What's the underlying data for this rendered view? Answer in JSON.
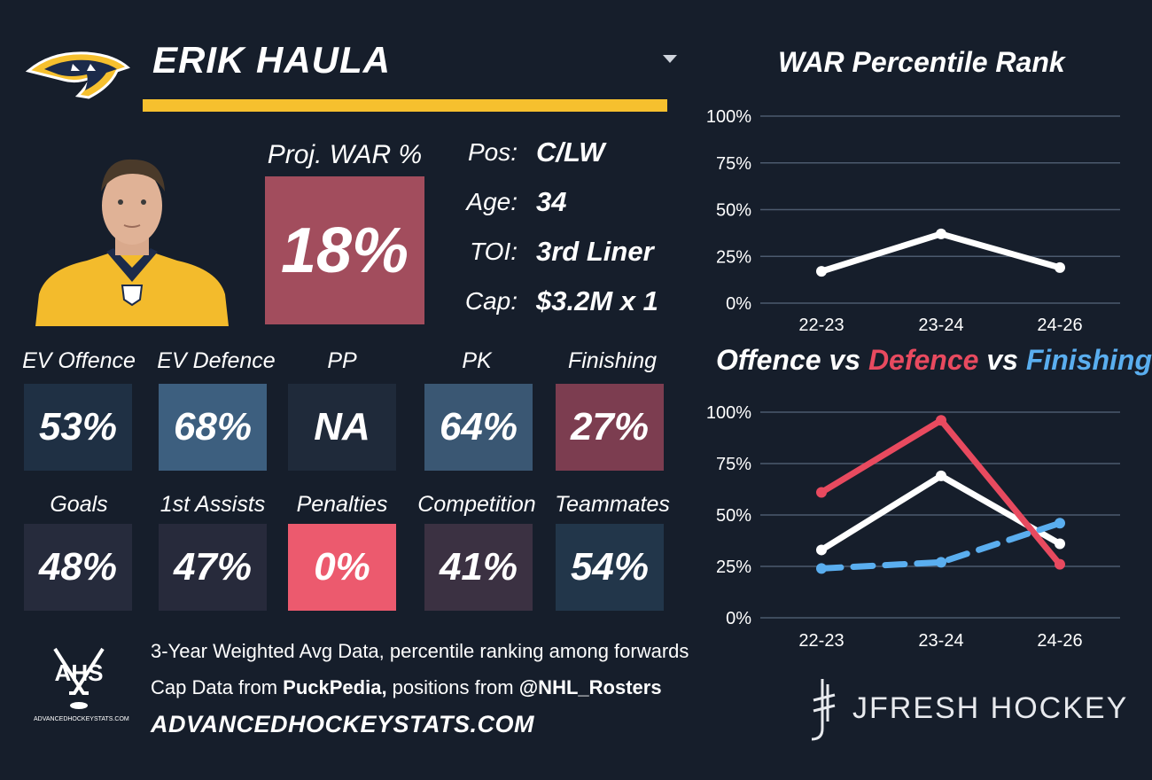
{
  "player": {
    "name": "ERIK HAULA"
  },
  "war": {
    "label": "Proj. WAR %",
    "value": "18%"
  },
  "info": [
    {
      "label": "Pos:",
      "value": "C/LW"
    },
    {
      "label": "Age:",
      "value": "34"
    },
    {
      "label": "TOI:",
      "value": "3rd Liner"
    },
    {
      "label": "Cap:",
      "value": "$3.2M x 1"
    }
  ],
  "tiles_row1": [
    {
      "label": "EV Offence",
      "value": "53%",
      "color": "#1f3044"
    },
    {
      "label": "EV Defence",
      "value": "68%",
      "color": "#3d5f7f"
    },
    {
      "label": "PP",
      "value": "NA",
      "color": "#1f2a3a"
    },
    {
      "label": "PK",
      "value": "64%",
      "color": "#3a5773"
    },
    {
      "label": "Finishing",
      "value": "27%",
      "color": "#7c3d50"
    }
  ],
  "tiles_row2": [
    {
      "label": "Goals",
      "value": "48%",
      "color": "#262b3c"
    },
    {
      "label": "1st Assists",
      "value": "47%",
      "color": "#272a3b"
    },
    {
      "label": "Penalties",
      "value": "0%",
      "color": "#ec5a6e"
    },
    {
      "label": "Competition",
      "value": "41%",
      "color": "#3b3142"
    },
    {
      "label": "Teammates",
      "value": "54%",
      "color": "#22364a"
    }
  ],
  "footer": {
    "line1": "3-Year Weighted Avg Data, percentile ranking among forwards",
    "line2_prefix": "Cap Data from ",
    "line2_source": "PuckPedia,",
    "line2_middle": " positions from ",
    "line2_handle": "@NHL_Rosters",
    "website": "ADVANCEDHOCKEYSTATS.COM",
    "ahs_logo_text": "AHS",
    "ahs_logo_subtext": "ADVANCEDHOCKEYSTATS.COM",
    "brand": "JFRESH HOCKEY"
  },
  "chart_data": [
    {
      "type": "line",
      "title": "WAR Percentile Rank",
      "categories": [
        "22-23",
        "23-24",
        "24-26"
      ],
      "yticks": [
        "0%",
        "25%",
        "50%",
        "75%",
        "100%"
      ],
      "ylim": [
        0,
        100
      ],
      "grid": true,
      "series": [
        {
          "values": [
            17,
            37,
            19
          ],
          "color": "#ffffff",
          "dashed": false
        }
      ]
    },
    {
      "type": "line",
      "title_parts": [
        {
          "text": "Offence",
          "color": "#ffffff"
        },
        {
          "text": " vs ",
          "color": "#ffffff"
        },
        {
          "text": "Defence",
          "color": "#e84a5f"
        },
        {
          "text": " vs ",
          "color": "#ffffff"
        },
        {
          "text": "Finishing",
          "color": "#5aaeef"
        }
      ],
      "categories": [
        "22-23",
        "23-24",
        "24-26"
      ],
      "yticks": [
        "0%",
        "25%",
        "50%",
        "75%",
        "100%"
      ],
      "ylim": [
        0,
        100
      ],
      "grid": true,
      "series": [
        {
          "name": "Offence",
          "values": [
            33,
            69,
            36
          ],
          "color": "#ffffff",
          "dashed": false
        },
        {
          "name": "Defence",
          "values": [
            61,
            96,
            26
          ],
          "color": "#e84a5f",
          "dashed": false
        },
        {
          "name": "Finishing",
          "values": [
            24,
            27,
            46
          ],
          "color": "#5aaeef",
          "dashed": true
        }
      ]
    }
  ]
}
